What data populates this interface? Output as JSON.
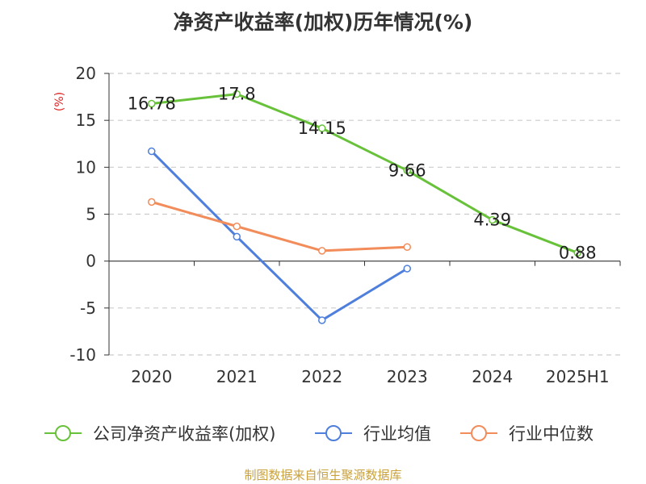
{
  "chart_data": {
    "type": "line",
    "title": "净资产收益率(加权)历年情况(%)",
    "ylabel": "(%)",
    "xlabel": "",
    "categories": [
      "2020",
      "2021",
      "2022",
      "2023",
      "2024",
      "2025H1"
    ],
    "ylim": [
      -10,
      20
    ],
    "yticks": [
      20,
      15,
      10,
      5,
      0,
      -5,
      -10
    ],
    "grid": true,
    "legend_position": "bottom",
    "series": [
      {
        "name": "公司净资产收益率(加权)",
        "color": "#67c23a",
        "values": [
          16.78,
          17.8,
          14.15,
          9.66,
          4.39,
          0.88
        ],
        "data_labels": [
          "16.78",
          "17.8",
          "14.15",
          "9.66",
          "4.39",
          "0.88"
        ]
      },
      {
        "name": "行业均值",
        "color": "#4f7fdc",
        "values": [
          11.7,
          2.6,
          -6.3,
          -0.8,
          null,
          null
        ]
      },
      {
        "name": "行业中位数",
        "color": "#f28c5a",
        "values": [
          6.3,
          3.7,
          1.1,
          1.5,
          null,
          null
        ]
      }
    ],
    "source": "制图数据来自恒生聚源数据库"
  }
}
